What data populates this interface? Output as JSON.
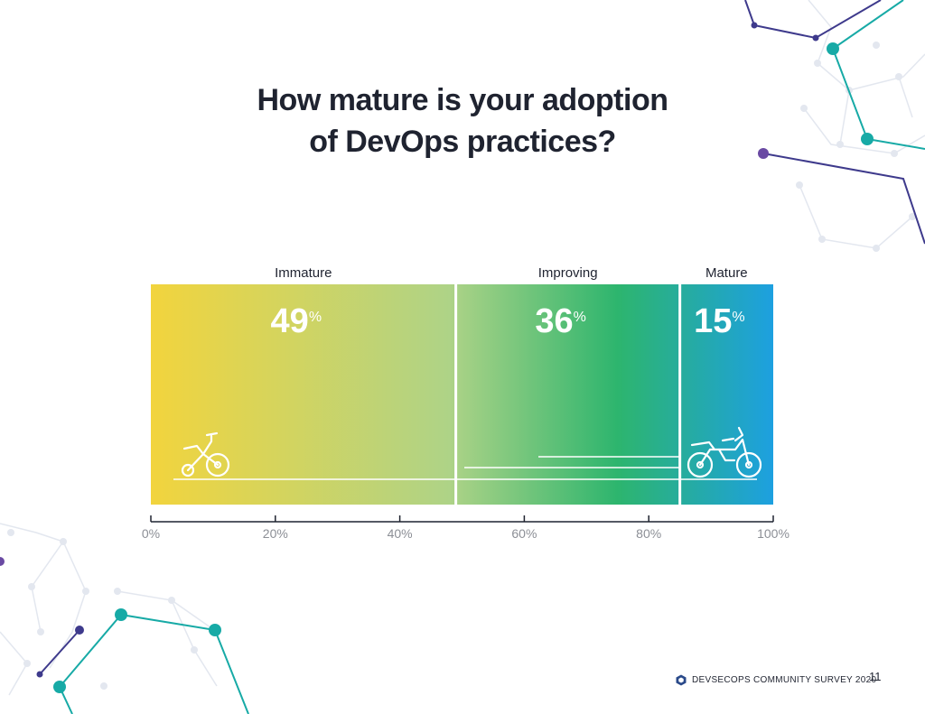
{
  "title": {
    "line1": "How mature is your adoption",
    "line2": "of DevOps practices?"
  },
  "chart_data": {
    "type": "bar",
    "orientation": "horizontal-stacked",
    "categories": [
      "Immature",
      "Improving",
      "Mature"
    ],
    "values": [
      49,
      36,
      15
    ],
    "value_labels": [
      "49",
      "36",
      "15"
    ],
    "percent_symbol": "%",
    "xlim": [
      0,
      100
    ],
    "xticks": [
      0,
      20,
      40,
      60,
      80,
      100
    ],
    "xtick_labels": [
      "0%",
      "20%",
      "40%",
      "60%",
      "80%",
      "100%"
    ],
    "gradient_colors": [
      "#f2d43d",
      "#aed387",
      "#2db56e",
      "#1da0e0"
    ],
    "icons": [
      "tricycle-icon",
      "motorcycle-icon"
    ]
  },
  "footer": {
    "text": "DEVSECOPS COMMUNITY SURVEY 2020",
    "page_number": "11",
    "logo_icon": "hexagon-logo-icon",
    "logo_color": "#2a4a8a"
  },
  "colors": {
    "teal": "#17aaa6",
    "purple": "#6a4aa3",
    "navy": "#3e3a8c",
    "grid_gray": "#dfe3ec"
  }
}
